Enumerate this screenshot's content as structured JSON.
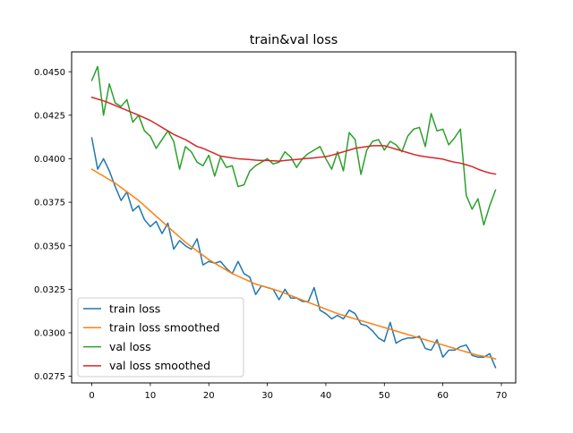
{
  "chart_data": {
    "type": "line",
    "title": "train&val loss",
    "xlabel": "",
    "ylabel": "",
    "xlim": [
      -3.45,
      72.45
    ],
    "ylim": [
      0.02712,
      0.04614
    ],
    "x_ticks": [
      0,
      10,
      20,
      30,
      40,
      50,
      60,
      70
    ],
    "y_ticks": [
      0.0275,
      0.03,
      0.0325,
      0.035,
      0.0375,
      0.04,
      0.0425,
      0.045
    ],
    "y_tick_labels": [
      "0.0275",
      "0.0300",
      "0.0325",
      "0.0350",
      "0.0375",
      "0.0400",
      "0.0425",
      "0.0450"
    ],
    "legend_position": "lower-left",
    "grid": false,
    "x": [
      0,
      1,
      2,
      3,
      4,
      5,
      6,
      7,
      8,
      9,
      10,
      11,
      12,
      13,
      14,
      15,
      16,
      17,
      18,
      19,
      20,
      21,
      22,
      23,
      24,
      25,
      26,
      27,
      28,
      29,
      30,
      31,
      32,
      33,
      34,
      35,
      36,
      37,
      38,
      39,
      40,
      41,
      42,
      43,
      44,
      45,
      46,
      47,
      48,
      49,
      50,
      51,
      52,
      53,
      54,
      55,
      56,
      57,
      58,
      59,
      60,
      61,
      62,
      63,
      64,
      65,
      66,
      67,
      68,
      69
    ],
    "series": [
      {
        "name": "train loss",
        "color": "#1f77b4",
        "values": [
          0.0412,
          0.0394,
          0.04,
          0.0393,
          0.0384,
          0.0376,
          0.0381,
          0.037,
          0.0373,
          0.0365,
          0.0361,
          0.0364,
          0.0357,
          0.0363,
          0.0348,
          0.0353,
          0.035,
          0.0348,
          0.0354,
          0.0339,
          0.0341,
          0.034,
          0.0341,
          0.0337,
          0.0334,
          0.0341,
          0.0334,
          0.0332,
          0.0322,
          0.0327,
          0.0326,
          0.0325,
          0.0319,
          0.0325,
          0.032,
          0.032,
          0.0318,
          0.0318,
          0.0326,
          0.0313,
          0.0311,
          0.0308,
          0.031,
          0.0308,
          0.0313,
          0.0311,
          0.0305,
          0.0304,
          0.0301,
          0.0297,
          0.0295,
          0.0306,
          0.0294,
          0.0296,
          0.0297,
          0.0297,
          0.0298,
          0.0291,
          0.029,
          0.0296,
          0.0286,
          0.029,
          0.029,
          0.0292,
          0.0293,
          0.0287,
          0.0286,
          0.0286,
          0.0288,
          0.028
        ]
      },
      {
        "name": "train loss smoothed",
        "color": "#ff7f0e",
        "values": [
          0.0394,
          0.0392,
          0.039,
          0.0388,
          0.0386,
          0.03835,
          0.0381,
          0.03785,
          0.0376,
          0.0373,
          0.037,
          0.0367,
          0.0364,
          0.0361,
          0.0358,
          0.0355,
          0.0352,
          0.03495,
          0.0347,
          0.03445,
          0.0342,
          0.034,
          0.0338,
          0.0336,
          0.0334,
          0.03325,
          0.0331,
          0.03295,
          0.0328,
          0.0327,
          0.0326,
          0.0325,
          0.0324,
          0.03227,
          0.03214,
          0.03201,
          0.03188,
          0.03175,
          0.03162,
          0.03149,
          0.03136,
          0.03123,
          0.0311,
          0.031,
          0.0309,
          0.0308,
          0.0307,
          0.0306,
          0.0305,
          0.0304,
          0.0303,
          0.0302,
          0.0301,
          0.03,
          0.0299,
          0.0298,
          0.0297,
          0.0296,
          0.0295,
          0.0294,
          0.0293,
          0.0292,
          0.0291,
          0.029,
          0.0289,
          0.0288,
          0.0287,
          0.02865,
          0.0286,
          0.0285
        ]
      },
      {
        "name": "val loss",
        "color": "#2ca02c",
        "values": [
          0.0445,
          0.0453,
          0.0425,
          0.0443,
          0.0432,
          0.043,
          0.0434,
          0.0421,
          0.0425,
          0.0416,
          0.0413,
          0.0406,
          0.0411,
          0.0416,
          0.041,
          0.0394,
          0.0407,
          0.0404,
          0.0398,
          0.0396,
          0.0402,
          0.039,
          0.0401,
          0.0395,
          0.0396,
          0.0384,
          0.0385,
          0.0393,
          0.0396,
          0.0398,
          0.04,
          0.0397,
          0.0398,
          0.0404,
          0.0401,
          0.0395,
          0.04,
          0.0403,
          0.0405,
          0.0407,
          0.04,
          0.0394,
          0.0404,
          0.0393,
          0.0415,
          0.0411,
          0.0391,
          0.0405,
          0.041,
          0.0411,
          0.0405,
          0.041,
          0.0408,
          0.0404,
          0.0413,
          0.0417,
          0.0418,
          0.0407,
          0.0426,
          0.0416,
          0.0417,
          0.0408,
          0.0412,
          0.0417,
          0.0379,
          0.0371,
          0.0377,
          0.0362,
          0.0373,
          0.0382
        ]
      },
      {
        "name": "val loss smoothed",
        "color": "#d62728",
        "values": [
          0.04353,
          0.04343,
          0.04333,
          0.0432,
          0.04306,
          0.04292,
          0.04278,
          0.04264,
          0.0425,
          0.04235,
          0.0422,
          0.042,
          0.0418,
          0.0416,
          0.0414,
          0.04125,
          0.0411,
          0.0409,
          0.0407,
          0.0406,
          0.04045,
          0.0403,
          0.04015,
          0.0401,
          0.04005,
          0.04,
          0.03998,
          0.03995,
          0.03992,
          0.0399,
          0.0399,
          0.03988,
          0.03986,
          0.0399,
          0.03993,
          0.03996,
          0.03999,
          0.04002,
          0.04005,
          0.04009,
          0.04012,
          0.0402,
          0.0403,
          0.0404,
          0.0405,
          0.0406,
          0.04065,
          0.0407,
          0.04075,
          0.04075,
          0.04075,
          0.04065,
          0.04055,
          0.04045,
          0.04035,
          0.04025,
          0.04017,
          0.04012,
          0.04007,
          0.04003,
          0.03998,
          0.03988,
          0.0398,
          0.03975,
          0.03965,
          0.03955,
          0.0394,
          0.03928,
          0.03918,
          0.03912
        ]
      }
    ]
  }
}
